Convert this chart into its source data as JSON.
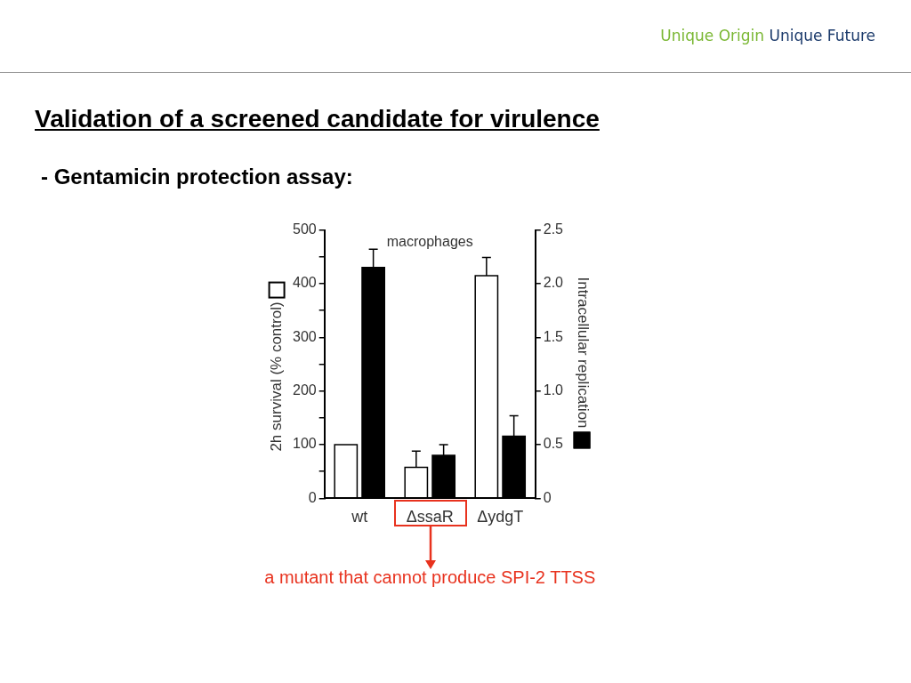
{
  "chart_data": {
    "type": "bar",
    "title": "Validation of a screened candidate for virulence",
    "subtitle": "- Gentamicin protection assay:",
    "ylabel": "2h survival (% control)",
    "y2label": "Intracellular replication",
    "categories": [
      "wt",
      "ΔssaR",
      "ΔydgT"
    ],
    "series": [
      {
        "color": "#ffffff",
        "values": [
          100,
          58,
          415
        ],
        "errors": [
          null,
          [
            58,
            88
          ],
          [
            415,
            449
          ]
        ]
      },
      {
        "color": "#000000",
        "axis": "y2",
        "values": [
          2.15,
          0.4,
          0.58
        ],
        "errors": [
          [
            2.15,
            2.32
          ],
          [
            0.4,
            0.5
          ],
          [
            0.58,
            0.77
          ]
        ]
      }
    ],
    "ylim": [
      0,
      500
    ],
    "yticks": [
      0,
      {
        "value": 50,
        "label": null
      },
      100,
      {
        "value": 150,
        "label": null
      },
      200,
      {
        "value": 250,
        "label": null
      },
      300,
      {
        "value": 350,
        "label": null
      },
      400,
      {
        "value": 450,
        "label": null
      },
      500
    ],
    "y2lim": [
      0,
      2.5
    ],
    "y2ticks": [
      0,
      0.5,
      {
        "value": 1,
        "label": "1.0"
      },
      1.5,
      {
        "value": 2,
        "label": "2.0"
      },
      2.5
    ],
    "grid": false,
    "annotations": [
      "macrophages",
      "a mutant that cannot produce SPI-2 TTSS",
      "Unique Origin",
      "Unique Future"
    ]
  }
}
